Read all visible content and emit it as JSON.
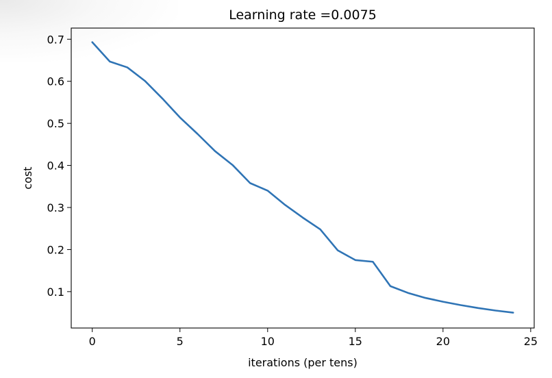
{
  "chart_data": {
    "type": "line",
    "title": "Learning rate =0.0075",
    "xlabel": "iterations (per tens)",
    "ylabel": "cost",
    "xlim": [
      -1.2,
      25.2
    ],
    "ylim": [
      0.0135,
      0.7265
    ],
    "xticks": [
      0,
      5,
      10,
      15,
      20,
      25
    ],
    "yticks": [
      0.1,
      0.2,
      0.3,
      0.4,
      0.5,
      0.6,
      0.7
    ],
    "xtick_labels": [
      "0",
      "5",
      "10",
      "15",
      "20",
      "25"
    ],
    "ytick_labels": [
      "0.1",
      "0.2",
      "0.3",
      "0.4",
      "0.5",
      "0.6",
      "0.7"
    ],
    "grid": false,
    "line_color": "#2f74b5",
    "series": [
      {
        "x": [
          0,
          1,
          2,
          3,
          4,
          5,
          6,
          7,
          8,
          9,
          10,
          11,
          12,
          13,
          14,
          15,
          16,
          17,
          18,
          19,
          20,
          21,
          22,
          23,
          24
        ],
        "values": [
          0.693,
          0.647,
          0.633,
          0.601,
          0.559,
          0.514,
          0.475,
          0.434,
          0.401,
          0.358,
          0.34,
          0.306,
          0.276,
          0.248,
          0.198,
          0.175,
          0.171,
          0.113,
          0.097,
          0.085,
          0.076,
          0.068,
          0.061,
          0.055,
          0.05
        ]
      }
    ]
  }
}
